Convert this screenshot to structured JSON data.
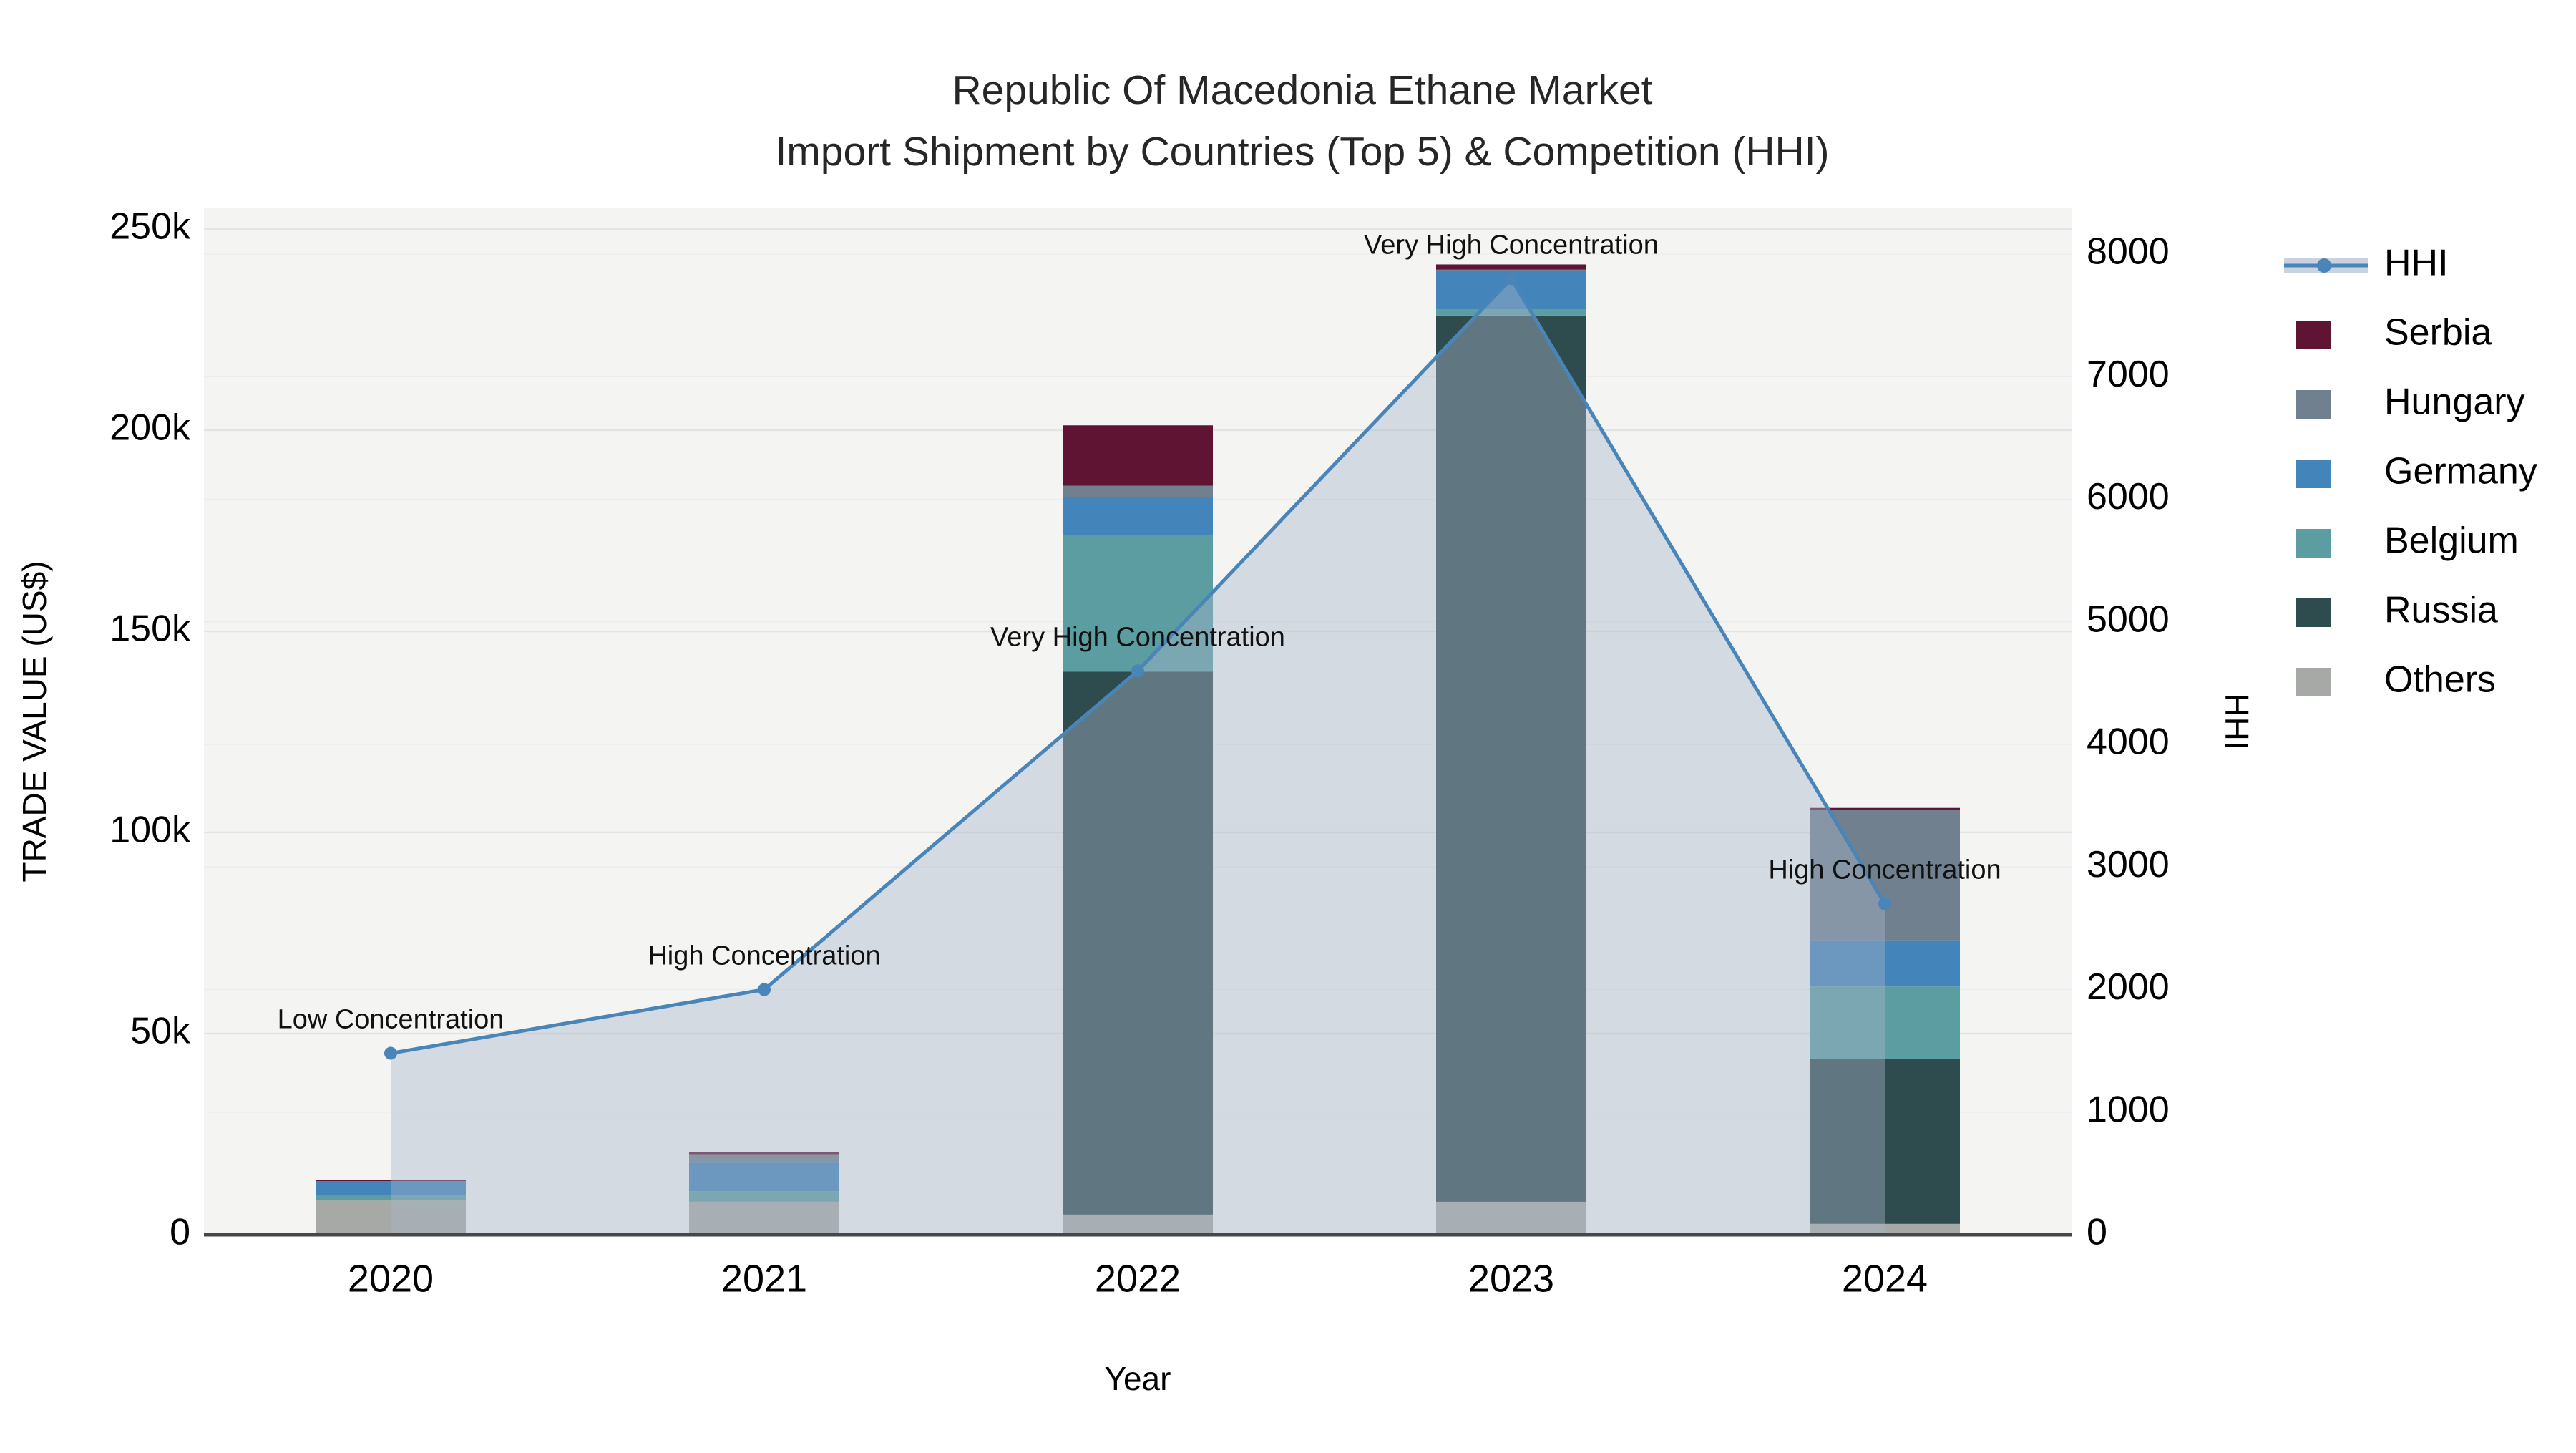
{
  "title": {
    "line1": "Republic Of Macedonia Ethane Market",
    "line2": "Import Shipment by Countries (Top 5) & Competition (HHI)"
  },
  "axes": {
    "x": {
      "label": "Year",
      "ticks": [
        "2020",
        "2021",
        "2022",
        "2023",
        "2024"
      ]
    },
    "y_left": {
      "label": "TRADE VALUE (US$)",
      "ticks": [
        {
          "v": 0,
          "label": "0"
        },
        {
          "v": 50000,
          "label": "50k"
        },
        {
          "v": 100000,
          "label": "100k"
        },
        {
          "v": 150000,
          "label": "150k"
        },
        {
          "v": 200000,
          "label": "200k"
        },
        {
          "v": 250000,
          "label": "250k"
        }
      ]
    },
    "y_right": {
      "label": "HHI",
      "ticks": [
        {
          "v": 0,
          "label": "0"
        },
        {
          "v": 1000,
          "label": "1000"
        },
        {
          "v": 2000,
          "label": "2000"
        },
        {
          "v": 3000,
          "label": "3000"
        },
        {
          "v": 4000,
          "label": "4000"
        },
        {
          "v": 5000,
          "label": "5000"
        },
        {
          "v": 6000,
          "label": "6000"
        },
        {
          "v": 7000,
          "label": "7000"
        },
        {
          "v": 8000,
          "label": "8000"
        }
      ]
    }
  },
  "legend": {
    "entries": [
      {
        "label": "HHI",
        "type": "line",
        "color": "#4A85B9",
        "band": "#C9D2DE"
      },
      {
        "label": "Serbia",
        "type": "swatch",
        "color": "#5F1434"
      },
      {
        "label": "Hungary",
        "type": "swatch",
        "color": "#70808F"
      },
      {
        "label": "Germany",
        "type": "swatch",
        "color": "#4384BB"
      },
      {
        "label": "Belgium",
        "type": "swatch",
        "color": "#5B9DA0"
      },
      {
        "label": "Russia",
        "type": "swatch",
        "color": "#2E4B4E"
      },
      {
        "label": "Others",
        "type": "swatch",
        "color": "#A7A9A6"
      }
    ]
  },
  "colors": {
    "plot_bg": "#F4F4F3",
    "grid_major_left": "#E4E4E4",
    "grid_major_right": "#EDEDED",
    "baseline": "#474747",
    "hhi_line": "#4A85B9",
    "hhi_fill": "rgba(166,180,200,0.42)",
    "annotation_text": "#111111",
    "tick_text": "#000000"
  },
  "chart_data": {
    "type": "combo: stacked bar (trade value, left axis) + line with area fill (HHI, right axis)",
    "categories": [
      "2020",
      "2021",
      "2022",
      "2023",
      "2024"
    ],
    "bar_series_bottom_to_top": [
      {
        "name": "Others",
        "color": "#A7A9A6",
        "values": [
          8500,
          8200,
          5000,
          8200,
          2700
        ]
      },
      {
        "name": "Russia",
        "color": "#2E4B4E",
        "values": [
          0,
          0,
          135000,
          220300,
          41000
        ]
      },
      {
        "name": "Belgium",
        "color": "#5B9DA0",
        "values": [
          1300,
          2600,
          34000,
          1500,
          18000
        ]
      },
      {
        "name": "Germany",
        "color": "#4384BB",
        "values": [
          3200,
          7100,
          9300,
          9500,
          11500
        ]
      },
      {
        "name": "Hungary",
        "color": "#70808F",
        "values": [
          300,
          2100,
          2900,
          400,
          32500
        ]
      },
      {
        "name": "Serbia",
        "color": "#5F1434",
        "values": [
          400,
          500,
          15000,
          1300,
          400
        ]
      }
    ],
    "bar_totals": [
      13700,
      20500,
      201200,
      241200,
      106100
    ],
    "line_series": {
      "name": "HHI",
      "values": [
        1480,
        2000,
        4600,
        7800,
        2700
      ],
      "annotations": [
        "Low Concentration",
        "High Concentration",
        "Very High Concentration",
        "Very High Concentration",
        "High Concentration"
      ]
    },
    "xlabel": "Year",
    "ylabel_left": "TRADE VALUE (US$)",
    "ylabel_right": "HHI",
    "y_left_range": [
      0,
      255000
    ],
    "y_right_range": [
      0,
      8380
    ],
    "grid": "horizontal gridlines for both axes",
    "legend_position": "outside top-right"
  }
}
